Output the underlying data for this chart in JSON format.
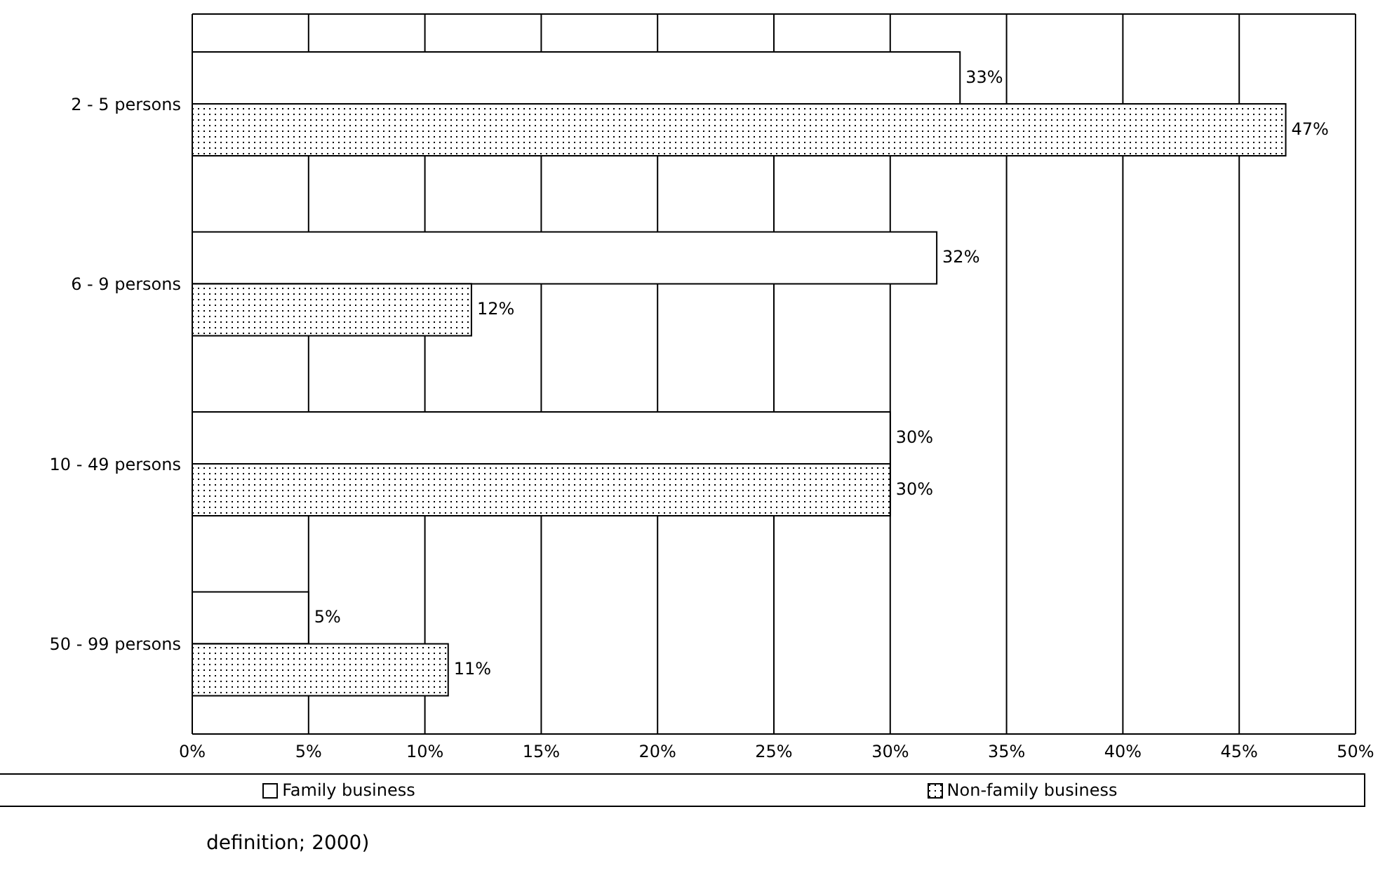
{
  "chart_data": {
    "type": "bar",
    "orientation": "horizontal",
    "categories": [
      "2 - 5 persons",
      "6 - 9 persons",
      "10 - 49 persons",
      "50 - 99 persons"
    ],
    "series": [
      {
        "name": "Family business",
        "color": "#ffffff",
        "values": [
          33,
          32,
          30,
          5
        ],
        "value_labels": [
          "33%",
          "32%",
          "30%",
          "5%"
        ]
      },
      {
        "name": "Non-family business",
        "color": "#000000",
        "values": [
          47,
          12,
          30,
          11
        ],
        "value_labels": [
          "47%",
          "12%",
          "30%",
          "11%"
        ]
      }
    ],
    "xlim": [
      0,
      50
    ],
    "xticks": [
      {
        "value": 0,
        "label": "0%"
      },
      {
        "value": 5,
        "label": "5%"
      },
      {
        "value": 10,
        "label": "10%"
      },
      {
        "value": 15,
        "label": "15%"
      },
      {
        "value": 20,
        "label": "20%"
      },
      {
        "value": 25,
        "label": "25%"
      },
      {
        "value": 30,
        "label": "30%"
      },
      {
        "value": 35,
        "label": "35%"
      },
      {
        "value": 40,
        "label": "40%"
      },
      {
        "value": 45,
        "label": "45%"
      },
      {
        "value": 50,
        "label": "50%"
      }
    ],
    "grid": "x",
    "legend": "bottom",
    "annotations": [
      "definition; 2000)"
    ]
  }
}
